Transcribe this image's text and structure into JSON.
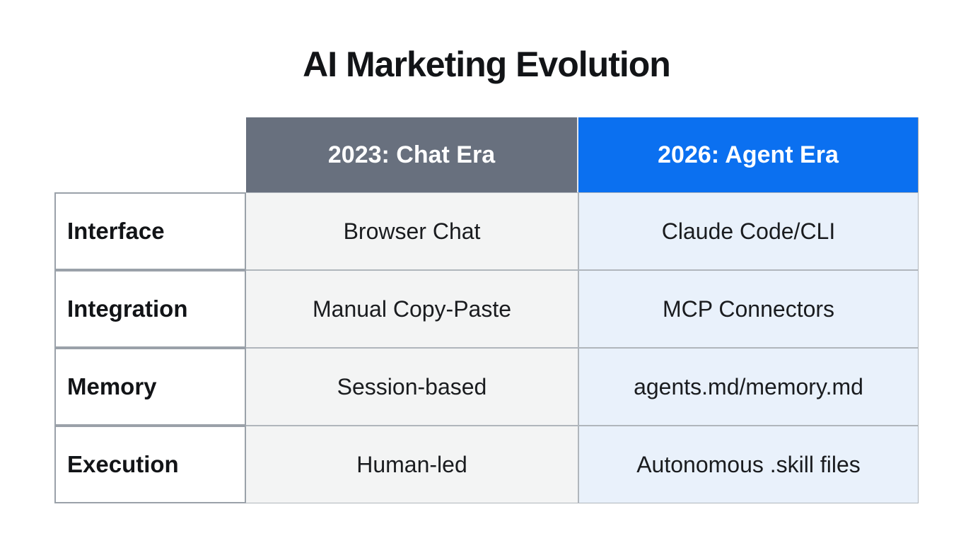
{
  "title": "AI Marketing Evolution",
  "colors": {
    "header_chat_bg": "#68707e",
    "header_agent_bg": "#0b70f0",
    "header_text": "#ffffff",
    "cell_chat_bg": "#f3f4f4",
    "cell_agent_bg": "#e9f1fb",
    "label_cell_bg": "#ffffff",
    "border": "#9aa1a9",
    "body_text": "#1a1c1f"
  },
  "table": {
    "columns": [
      {
        "key": "chat",
        "label": "2023: Chat Era"
      },
      {
        "key": "agent",
        "label": "2026: Agent Era"
      }
    ],
    "rows": [
      {
        "label": "Interface",
        "chat": "Browser Chat",
        "agent": "Claude Code/CLI"
      },
      {
        "label": "Integration",
        "chat": "Manual Copy-Paste",
        "agent": "MCP Connectors"
      },
      {
        "label": "Memory",
        "chat": "Session-based",
        "agent": "agents.md/memory.md"
      },
      {
        "label": "Execution",
        "chat": "Human-led",
        "agent": "Autonomous .skill files"
      }
    ]
  },
  "chart_data": {
    "type": "table",
    "title": "AI Marketing Evolution",
    "columns": [
      "",
      "2023: Chat Era",
      "2026: Agent Era"
    ],
    "rows": [
      [
        "Interface",
        "Browser Chat",
        "Claude Code/CLI"
      ],
      [
        "Integration",
        "Manual Copy-Paste",
        "MCP Connectors"
      ],
      [
        "Memory",
        "Session-based",
        "agents.md/memory.md"
      ],
      [
        "Execution",
        "Human-led",
        "Autonomous .skill files"
      ]
    ],
    "layout": {
      "header_row_colors": [
        "#68707e",
        "#0b70f0"
      ],
      "row_label_style": "bold",
      "grid": "on",
      "legend_position": "none"
    }
  }
}
